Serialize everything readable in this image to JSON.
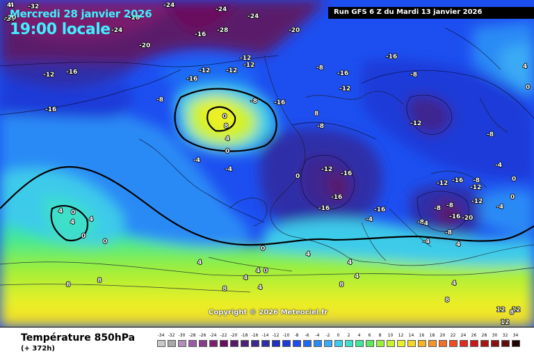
{
  "header": {
    "date": "Mercredi 28 janvier 2026",
    "local_time": "19:00 locale",
    "run": "Run GFS 6 Z du Mardi 13 janvier 2026"
  },
  "footer": {
    "parameter": "Température 850hPa",
    "lead_time": "(+ 372h)",
    "copyright": "Copyright © 2026 Meteociel.fr"
  },
  "scale": [
    {
      "v": "-34",
      "c": "#c8c8c8"
    },
    {
      "v": "-32",
      "c": "#a8a8a8"
    },
    {
      "v": "-30",
      "c": "#b090b8"
    },
    {
      "v": "-28",
      "c": "#9a5aa5"
    },
    {
      "v": "-26",
      "c": "#8a3a8a"
    },
    {
      "v": "-24",
      "c": "#7a1f6e"
    },
    {
      "v": "-22",
      "c": "#6a0f5e"
    },
    {
      "v": "-20",
      "c": "#5a1a6a"
    },
    {
      "v": "-18",
      "c": "#4c2078"
    },
    {
      "v": "-16",
      "c": "#3c2890"
    },
    {
      "v": "-14",
      "c": "#2e2ea8"
    },
    {
      "v": "-12",
      "c": "#2030c0"
    },
    {
      "v": "-10",
      "c": "#1c3ad8"
    },
    {
      "v": "-8",
      "c": "#1d4ff0"
    },
    {
      "v": "-6",
      "c": "#1e6af5"
    },
    {
      "v": "-4",
      "c": "#2a8af5"
    },
    {
      "v": "-2",
      "c": "#3aaaf5"
    },
    {
      "v": "0",
      "c": "#3ccbea"
    },
    {
      "v": "2",
      "c": "#3ee0c8"
    },
    {
      "v": "4",
      "c": "#3ee89a"
    },
    {
      "v": "6",
      "c": "#5aeb5a"
    },
    {
      "v": "8",
      "c": "#9bef3a"
    },
    {
      "v": "10",
      "c": "#c8f22d"
    },
    {
      "v": "12",
      "c": "#ecf027"
    },
    {
      "v": "14",
      "c": "#f5d627"
    },
    {
      "v": "16",
      "c": "#f5b527"
    },
    {
      "v": "18",
      "c": "#f59427"
    },
    {
      "v": "20",
      "c": "#f57027"
    },
    {
      "v": "22",
      "c": "#f04a24"
    },
    {
      "v": "24",
      "c": "#e02a20"
    },
    {
      "v": "26",
      "c": "#c81818"
    },
    {
      "v": "28",
      "c": "#a81414"
    },
    {
      "v": "30",
      "c": "#881010"
    },
    {
      "v": "32",
      "c": "#600c0c"
    },
    {
      "v": "34",
      "c": "#200404"
    }
  ],
  "map_labels": [
    "-32",
    "-24",
    "-28",
    "-24",
    "-24",
    "-20",
    "-24",
    "-28",
    "-16",
    "-20",
    "-24",
    "-16",
    "-20",
    "-12",
    "-12",
    "-16",
    "-12",
    "-8",
    "-12",
    "-12",
    "-16",
    "-16",
    "-12",
    "-8",
    "-16",
    "-8",
    "-8",
    "-8",
    "-16",
    "-4",
    "-8",
    "-12",
    "0",
    "8",
    "4",
    "0",
    "8",
    "-4",
    "0",
    "-12",
    "-16",
    "-16",
    "-16",
    "-16",
    "-12",
    "-8",
    "-12",
    "-8",
    "-8",
    "-16",
    "-20",
    "-12",
    "-16",
    "-4",
    "-4",
    "-8",
    "-8",
    "-4",
    "0",
    "4",
    "4",
    "0",
    "0",
    "4",
    "4",
    "8",
    "8",
    "4",
    "4",
    "8",
    "4",
    "0",
    "4",
    "4",
    "8",
    "8",
    "0",
    "4",
    "12",
    "12",
    "8",
    "-4",
    "4",
    "0",
    "-4",
    "4",
    "12",
    "4",
    "0",
    "0",
    "-4",
    "4"
  ]
}
